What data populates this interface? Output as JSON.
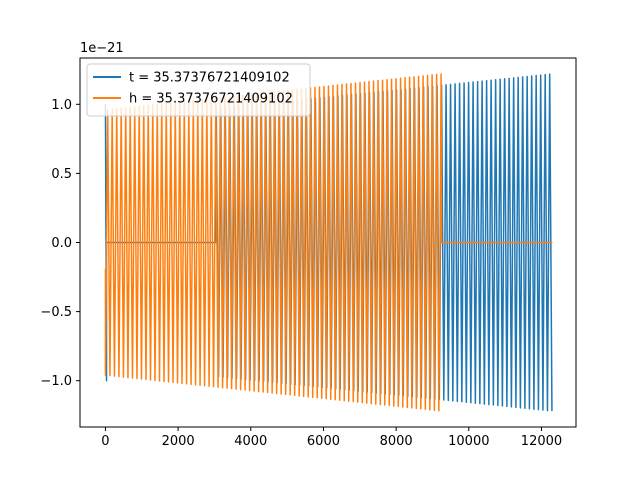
{
  "chart_data": {
    "type": "line",
    "title": "",
    "xlabel": "",
    "ylabel": "",
    "y_offset_label": "1e−21",
    "xlim": [
      -700,
      12950
    ],
    "ylim": [
      -1.335,
      1.335
    ],
    "x_ticks": [
      0,
      2000,
      4000,
      6000,
      8000,
      10000,
      12000
    ],
    "x_tick_labels": [
      "0",
      "2000",
      "4000",
      "6000",
      "8000",
      "10000",
      "12000"
    ],
    "y_ticks": [
      -1.0,
      -0.5,
      0.0,
      0.5,
      1.0
    ],
    "y_tick_labels": [
      "−1.0",
      "−0.5",
      "0.0",
      "0.5",
      "1.0"
    ],
    "grid": false,
    "legend_position": "top-left",
    "series": [
      {
        "name": "t = 35.37376721409102",
        "color": "#1f77b4",
        "segments": [
          {
            "x_start": 0,
            "x_end": 30,
            "amp_start": 1.0,
            "amp_end": 1.0,
            "oscillating": true,
            "period": 60
          },
          {
            "x_start": 30,
            "x_end": 3050,
            "oscillating": false,
            "value": 0.0
          },
          {
            "x_start": 3050,
            "x_end": 12300,
            "amp_start": 0.97,
            "amp_end": 1.22,
            "oscillating": true,
            "period": 124
          }
        ]
      },
      {
        "name": "h = 35.37376721409102",
        "color": "#ff7f0e",
        "segments": [
          {
            "x_start": 0,
            "x_end": 9250,
            "amp_start": 0.96,
            "amp_end": 1.22,
            "oscillating": true,
            "period": 124,
            "start_value": -0.19
          },
          {
            "x_start": 9250,
            "x_end": 12300,
            "oscillating": false,
            "value": 0.0
          }
        ]
      }
    ]
  }
}
